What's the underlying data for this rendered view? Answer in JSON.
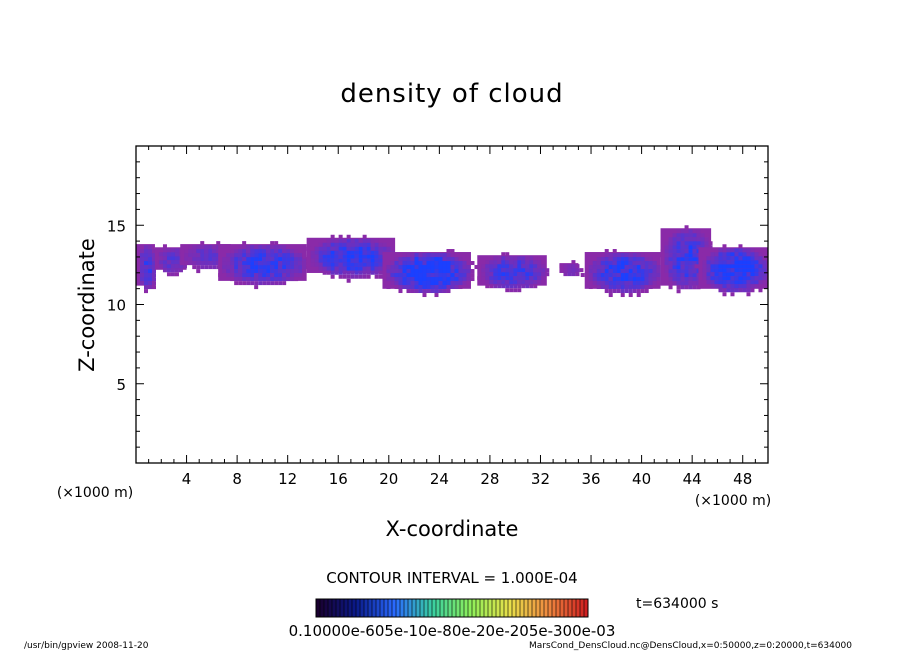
{
  "chart_data": {
    "type": "heatmap",
    "title": "density of cloud",
    "xlabel": "X-coordinate",
    "ylabel": "Z-coordinate",
    "x_unit": "(×1000 m)",
    "x_unit_right": "(×1000 m)",
    "xlim": [
      0,
      50
    ],
    "ylim": [
      0,
      20
    ],
    "x_ticks": [
      4,
      8,
      12,
      16,
      20,
      24,
      28,
      32,
      36,
      40,
      44,
      48
    ],
    "y_ticks": [
      5,
      10,
      15
    ],
    "x_ticklabels": [
      "4",
      "8",
      "12",
      "16",
      "20",
      "24",
      "28",
      "32",
      "36",
      "40",
      "44",
      "48"
    ],
    "y_ticklabels": [
      "5",
      "10",
      "15"
    ],
    "contour_interval_text": "CONTOUR INTERVAL = 1.000E-04",
    "time_text": "t=634000 s",
    "colorbar_labels_text": "0.10000e-605e-10e-80e-20e-205e-300e-03",
    "colormap": [
      "#1a0030",
      "#0a1a8a",
      "#2a6aff",
      "#3ad0a0",
      "#8ff05a",
      "#e8e04a",
      "#f08a40",
      "#d02020"
    ],
    "cloud_color_low": "#8a2aa8",
    "cloud_color_high": "#1a40ff",
    "cloud_band": [
      {
        "x0": 0.0,
        "x1": 1.5,
        "z0": 11.0,
        "z1": 14.0,
        "core": 0.45
      },
      {
        "x0": 1.5,
        "x1": 4.0,
        "z0": 12.0,
        "z1": 13.8,
        "core": 0.3
      },
      {
        "x0": 3.5,
        "x1": 7.5,
        "z0": 12.3,
        "z1": 14.0,
        "core": 0.25
      },
      {
        "x0": 6.5,
        "x1": 13.5,
        "z0": 11.3,
        "z1": 14.0,
        "core": 0.55
      },
      {
        "x0": 13.5,
        "x1": 20.5,
        "z0": 11.8,
        "z1": 14.4,
        "core": 0.65
      },
      {
        "x0": 19.5,
        "x1": 26.5,
        "z0": 10.8,
        "z1": 13.5,
        "core": 0.8
      },
      {
        "x0": 27.0,
        "x1": 32.5,
        "z0": 11.0,
        "z1": 13.3,
        "core": 0.5
      },
      {
        "x0": 33.5,
        "x1": 35.0,
        "z0": 11.8,
        "z1": 12.8,
        "core": 0.15
      },
      {
        "x0": 35.5,
        "x1": 41.5,
        "z0": 10.8,
        "z1": 13.5,
        "core": 0.6
      },
      {
        "x0": 41.5,
        "x1": 45.5,
        "z0": 11.0,
        "z1": 15.0,
        "core": 0.55
      },
      {
        "x0": 44.5,
        "x1": 50.0,
        "z0": 10.8,
        "z1": 13.8,
        "core": 0.75
      }
    ],
    "grid": false,
    "legend": "colorbar-bottom"
  },
  "footer": {
    "left": "/usr/bin/gpview   2008-11-20",
    "right": "MarsCond_DensCloud.nc@DensCloud,x=0:50000,z=0:20000,t=634000"
  }
}
